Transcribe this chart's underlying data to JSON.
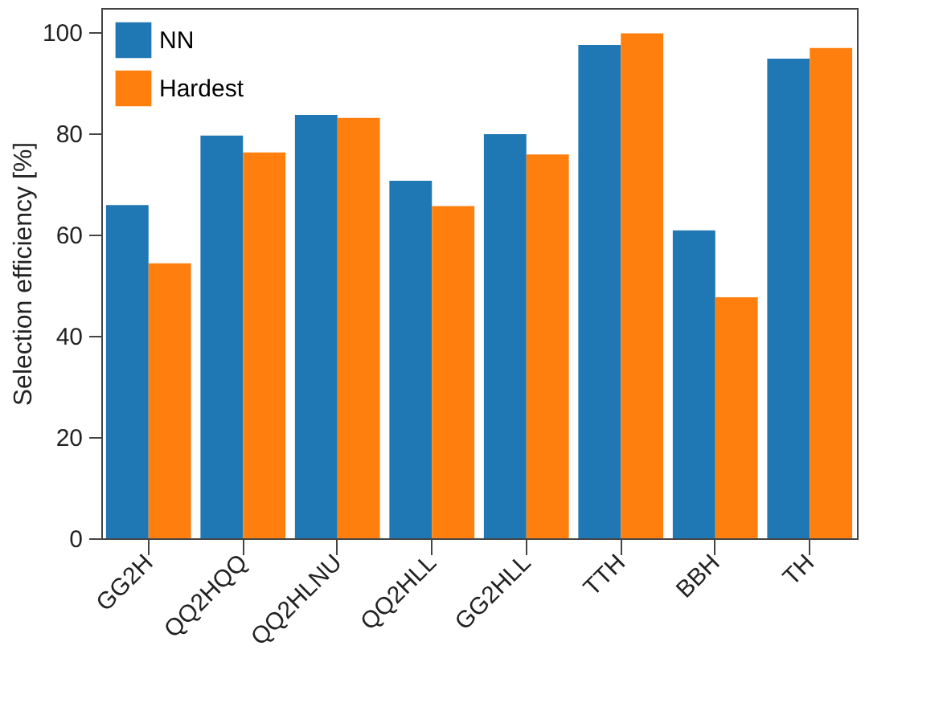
{
  "chart_data": {
    "type": "bar",
    "ylabel": "Selection efficiency [%]",
    "categories": [
      "GG2H",
      "QQ2HQQ",
      "QQ2HLNU",
      "QQ2HLL",
      "GG2HLL",
      "TTH",
      "BBH",
      "TH"
    ],
    "series": [
      {
        "name": "NN",
        "color": "#1f77b4",
        "values": [
          65.8,
          79.5,
          83.6,
          70.6,
          79.8,
          97.4,
          60.8,
          94.7
        ]
      },
      {
        "name": "Hardest",
        "color": "#ff7f0e",
        "values": [
          54.3,
          76.2,
          83.0,
          65.6,
          75.8,
          99.7,
          47.6,
          96.8
        ]
      }
    ],
    "ylim": [
      0,
      104.7
    ],
    "yticks": [
      0,
      20,
      40,
      60,
      80,
      100
    ],
    "grid": false,
    "legend": "top left"
  }
}
